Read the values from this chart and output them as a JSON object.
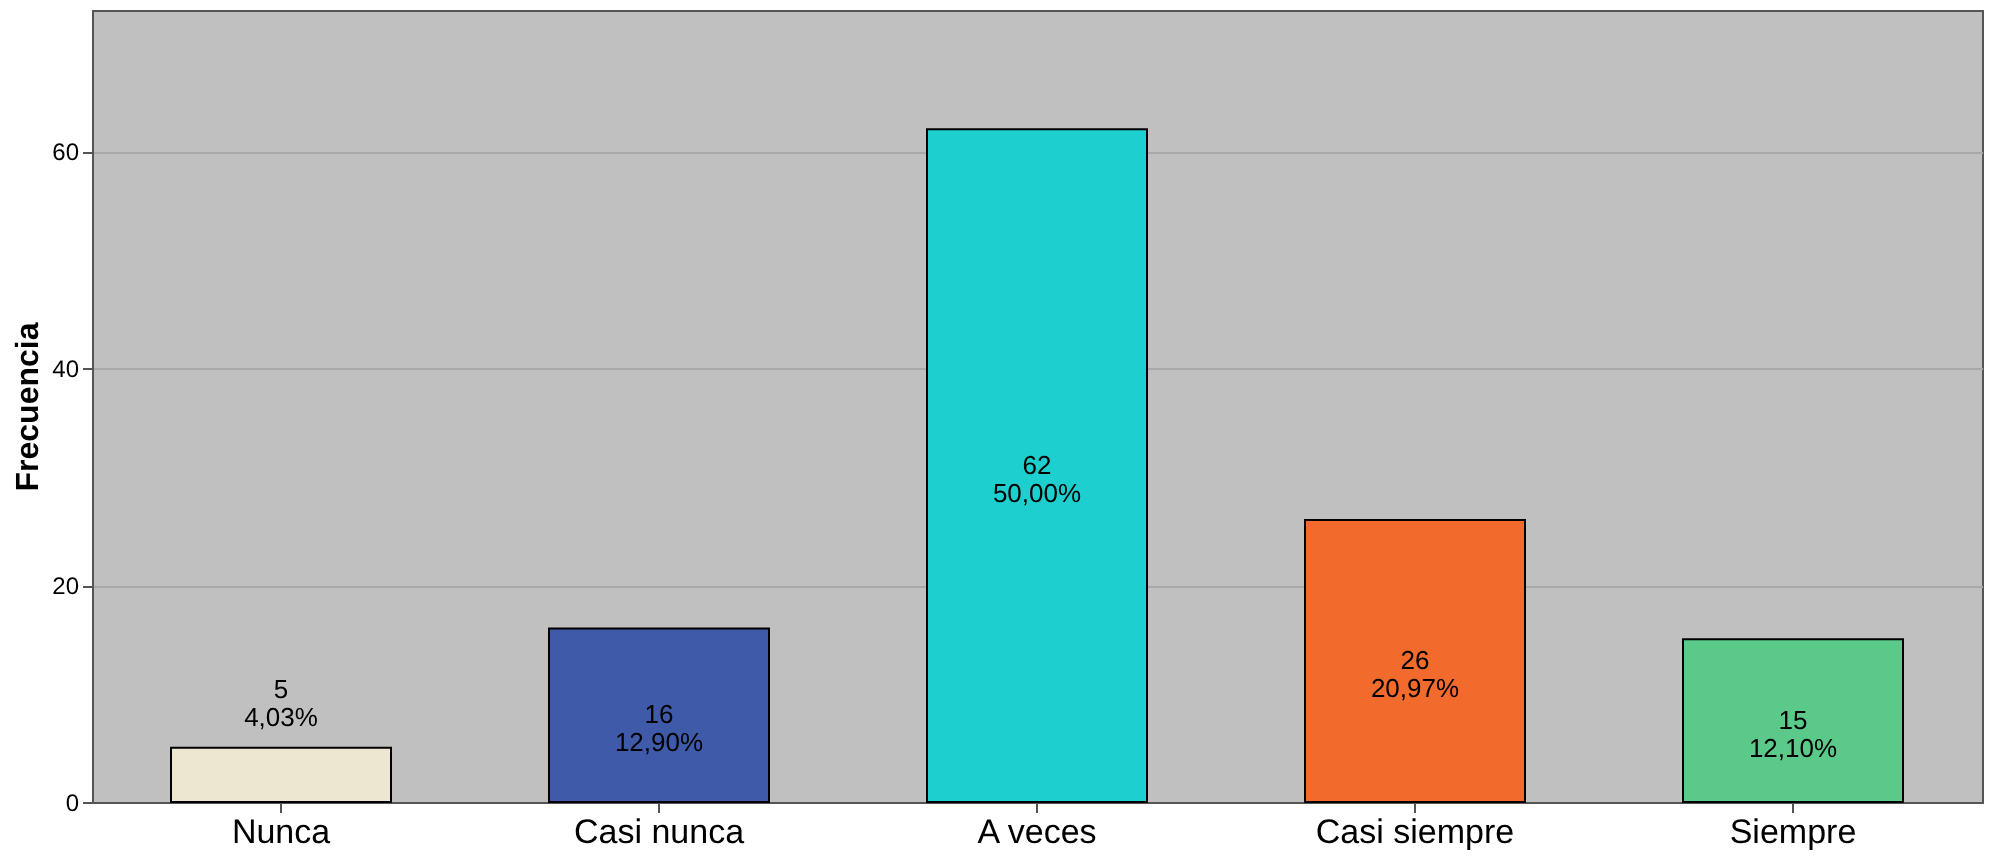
{
  "chart_data": {
    "type": "bar",
    "ylabel": "Frecuencia",
    "categories": [
      "Nunca",
      "Casi nunca",
      "A veces",
      "Casi siempre",
      "Siempre"
    ],
    "values": [
      5,
      16,
      62,
      26,
      15
    ],
    "colors": [
      "#ede6d0",
      "#3f5aa8",
      "#1ecfcf",
      "#f26a2c",
      "#5ac98a"
    ],
    "value_labels": [
      "5\n4,03%",
      "16\n12,90%",
      "62\n50,00%",
      "26\n20,97%",
      "15\n12,10%"
    ],
    "ylim": [
      0,
      73
    ],
    "yticks": [
      0,
      20,
      40,
      60
    ],
    "grid": "y",
    "legend": false
  }
}
